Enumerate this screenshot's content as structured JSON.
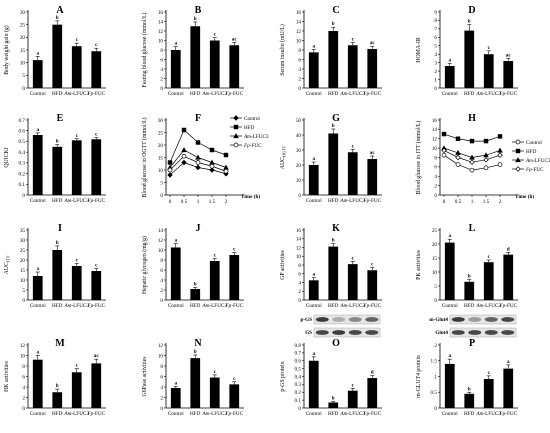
{
  "colors": {
    "bar": "#000000",
    "axis": "#000000",
    "blot_bg": "#ffffff",
    "blot_band": "#2b2b2b"
  },
  "charts": [
    {
      "panel": "A",
      "type": "bar",
      "ylabel": "Body weight gain (g)",
      "categories": [
        "Control",
        "HFD",
        "Am-LFUC3",
        "Fp-FUC"
      ],
      "values": [
        11,
        25,
        16.5,
        14.5
      ],
      "errors": [
        1.5,
        1.5,
        1.2,
        1.2
      ],
      "letters": [
        "a",
        "b",
        "c",
        "c"
      ],
      "yticks": [
        0,
        5,
        10,
        15,
        20,
        25,
        30
      ],
      "ylim": [
        0,
        30
      ]
    },
    {
      "panel": "B",
      "type": "bar",
      "ylabel": "Fasting blood glucose (mmol/L)",
      "categories": [
        "Control",
        "HFD",
        "Am-LFUC3",
        "Fp-FUC"
      ],
      "values": [
        8,
        13,
        10,
        9
      ],
      "errors": [
        0.7,
        0.9,
        0.6,
        0.6
      ],
      "letters": [
        "a",
        "b",
        "c",
        "ac"
      ],
      "yticks": [
        0,
        2,
        4,
        6,
        8,
        10,
        12,
        14,
        16
      ],
      "ylim": [
        0,
        16
      ]
    },
    {
      "panel": "C",
      "type": "bar",
      "ylabel": "Serum insulin (mU/L)",
      "categories": [
        "Control",
        "HFD",
        "Am-LFUC3",
        "Fp-FUC"
      ],
      "values": [
        7.5,
        12,
        9,
        8.2
      ],
      "errors": [
        0.6,
        0.8,
        0.6,
        0.6
      ],
      "letters": [
        "a",
        "b",
        "c",
        "ac"
      ],
      "yticks": [
        0,
        2,
        4,
        6,
        8,
        10,
        12,
        14,
        16
      ],
      "ylim": [
        0,
        16
      ]
    },
    {
      "panel": "D",
      "type": "bar",
      "ylabel": "HOMA-IR",
      "categories": [
        "Control",
        "HFD",
        "Am-LFUC3",
        "Fp-FUC"
      ],
      "values": [
        2.6,
        6.8,
        4,
        3.2
      ],
      "errors": [
        0.3,
        0.7,
        0.4,
        0.3
      ],
      "letters": [
        "a",
        "b",
        "c",
        "ac"
      ],
      "yticks": [
        0,
        1,
        2,
        3,
        4,
        5,
        6,
        7,
        8,
        9
      ],
      "ylim": [
        0,
        9
      ]
    },
    {
      "panel": "E",
      "type": "bar",
      "ylabel": "QUICKI",
      "categories": [
        "Control",
        "HFD",
        "Am-LFUC3",
        "Fp-FUC"
      ],
      "values": [
        0.56,
        0.45,
        0.51,
        0.52
      ],
      "errors": [
        0.02,
        0.02,
        0.015,
        0.015
      ],
      "letters": [
        "a",
        "b",
        "c",
        "c"
      ],
      "yticks": [
        0,
        0.1,
        0.2,
        0.3,
        0.4,
        0.5,
        0.6,
        0.7
      ],
      "ylim": [
        0,
        0.7
      ]
    },
    {
      "panel": "F",
      "type": "line",
      "ylabel": "Blood glucose in OGTT (mmol/L)",
      "xlabel": "Time (h)",
      "x": [
        0,
        0.5,
        1,
        1.5,
        2
      ],
      "xticks": [
        "0",
        "0.5",
        "1",
        "1.5",
        "2"
      ],
      "yticks": [
        0,
        5,
        10,
        15,
        20,
        25,
        30
      ],
      "ylim": [
        0,
        30
      ],
      "series": [
        {
          "name": "Control",
          "marker": "diamond-filled",
          "values": [
            8,
            13,
            11,
            10,
            8.5
          ]
        },
        {
          "name": "HFD",
          "marker": "square-filled",
          "values": [
            13,
            26,
            21,
            18,
            16
          ]
        },
        {
          "name": "Am-LFUC3",
          "marker": "triangle-filled",
          "values": [
            11,
            18,
            15,
            13,
            11
          ]
        },
        {
          "name": "Fp-FUC",
          "marker": "circle-open",
          "values": [
            10,
            15.5,
            13,
            11.5,
            9.5
          ]
        }
      ],
      "legend_position": "upper-right, outside plot"
    },
    {
      "panel": "G",
      "type": "bar",
      "ylabel": "AUC OGTT",
      "ylabel_main": "AUC",
      "ylabel_sub": "OGTT",
      "categories": [
        "Control",
        "HFD",
        "Am-LFUC3",
        "Fp-FUC"
      ],
      "values": [
        20,
        41,
        28.5,
        24
      ],
      "errors": [
        2,
        3,
        2,
        2
      ],
      "letters": [
        "a",
        "b",
        "c",
        "ac"
      ],
      "yticks": [
        0,
        10,
        20,
        30,
        40,
        50
      ],
      "ylim": [
        0,
        50
      ]
    },
    {
      "panel": "H",
      "type": "line",
      "ylabel": "Blood glucose in ITT (mmol/L)",
      "xlabel": "Time (h)",
      "x": [
        0,
        0.5,
        1,
        1.5,
        2
      ],
      "xticks": [
        "0",
        "0.5",
        "1",
        "1.5",
        "2"
      ],
      "yticks": [
        0,
        2,
        4,
        6,
        8,
        10,
        12,
        14,
        16
      ],
      "ylim": [
        0,
        16
      ],
      "series": [
        {
          "name": "Control",
          "marker": "circle-open",
          "values": [
            8.5,
            6.5,
            5.3,
            5.8,
            6.5
          ]
        },
        {
          "name": "HFD",
          "marker": "square-filled",
          "values": [
            13,
            12,
            11.5,
            11.5,
            12.5
          ]
        },
        {
          "name": "Am-LFUC3",
          "marker": "triangle-filled",
          "values": [
            10,
            9,
            8,
            8.5,
            9.5
          ]
        },
        {
          "name": "Fp-FUC",
          "marker": "diamond-open",
          "values": [
            9.5,
            8,
            7,
            7.5,
            8.5
          ]
        }
      ],
      "legend_position": "right-middle"
    },
    {
      "panel": "I",
      "type": "bar",
      "ylabel": "AUC ITT",
      "ylabel_main": "AUC",
      "ylabel_sub": "ITT",
      "categories": [
        "Control",
        "HFD",
        "Am-LFUC3",
        "Fp-FUC"
      ],
      "values": [
        12,
        25,
        17,
        14.5
      ],
      "errors": [
        2,
        2,
        1.2,
        1.2
      ],
      "letters": [
        "a",
        "b",
        "c",
        "c"
      ],
      "yticks": [
        0,
        5,
        10,
        15,
        20,
        25,
        30,
        35
      ],
      "ylim": [
        0,
        35
      ]
    },
    {
      "panel": "J",
      "type": "bar",
      "ylabel": "Hepatic glycogen (mg/g)",
      "categories": [
        "Control",
        "HFD",
        "Am-LFUC3",
        "Fp-FUC"
      ],
      "values": [
        10.5,
        2.2,
        7.8,
        9
      ],
      "errors": [
        0.8,
        0.3,
        0.5,
        0.5
      ],
      "letters": [
        "a",
        "b",
        "c",
        "c"
      ],
      "yticks": [
        0,
        2,
        4,
        6,
        8,
        10,
        12,
        14
      ],
      "ylim": [
        0,
        14
      ]
    },
    {
      "panel": "K",
      "type": "bar",
      "ylabel": "GP activities",
      "categories": [
        "Control",
        "HFD",
        "Am-LFUC3",
        "Fp-FUC"
      ],
      "values": [
        4.5,
        12.2,
        8.2,
        6.8
      ],
      "errors": [
        0.6,
        0.7,
        0.6,
        0.6
      ],
      "letters": [
        "a",
        "b",
        "c",
        "c"
      ],
      "yticks": [
        0,
        2,
        4,
        6,
        8,
        10,
        12,
        14,
        16
      ],
      "ylim": [
        0,
        16
      ]
    },
    {
      "panel": "L",
      "type": "bar",
      "ylabel": "PK activities",
      "categories": [
        "Control",
        "HFD",
        "Am-LFUC3",
        "Fp-FUC"
      ],
      "values": [
        20.5,
        6.5,
        13.5,
        16.2
      ],
      "errors": [
        1.2,
        0.8,
        0.8,
        0.8
      ],
      "letters": [
        "a",
        "b",
        "c",
        "d"
      ],
      "yticks": [
        0,
        5,
        10,
        15,
        20,
        25
      ],
      "ylim": [
        0,
        25
      ]
    },
    {
      "panel": "M",
      "type": "bar",
      "ylabel": "HK activities",
      "categories": [
        "Control",
        "HFD",
        "Am-LFUC3",
        "Fp-FUC"
      ],
      "values": [
        9.2,
        3,
        6.8,
        8.5
      ],
      "errors": [
        0.8,
        0.6,
        0.7,
        0.8
      ],
      "letters": [
        "a",
        "b",
        "c",
        "ac"
      ],
      "yticks": [
        0,
        2,
        4,
        6,
        8,
        10,
        12
      ],
      "ylim": [
        0,
        12
      ]
    },
    {
      "panel": "N",
      "type": "bar",
      "ylabel": "G6Pase activities",
      "categories": [
        "Control",
        "HFD",
        "Am-LFUC3",
        "Fp-FUC"
      ],
      "values": [
        3.8,
        9.5,
        5.8,
        4.5
      ],
      "errors": [
        0.3,
        0.6,
        0.5,
        0.5
      ],
      "letters": [
        "a",
        "b",
        "c",
        "c"
      ],
      "yticks": [
        0,
        2,
        4,
        6,
        8,
        10,
        12
      ],
      "ylim": [
        0,
        12
      ]
    },
    {
      "panel": "O",
      "type": "bar",
      "ylabel": "p-GS protein",
      "ylabel_main": "GS protein",
      "ylabel_prefix": "p-",
      "categories": [
        "Control",
        "HFD",
        "Am-LFUC3",
        "Fp-FUC"
      ],
      "values": [
        0.6,
        0.07,
        0.22,
        0.38
      ],
      "errors": [
        0.05,
        0.01,
        0.03,
        0.03
      ],
      "letters": [
        "a",
        "b",
        "c",
        "d"
      ],
      "yticks": [
        0,
        0.1,
        0.2,
        0.3,
        0.4,
        0.5,
        0.6,
        0.7,
        0.8
      ],
      "ylim": [
        0,
        0.8
      ],
      "blot_labels": [
        "p-GS",
        "GS"
      ],
      "blot_intensity": [
        [
          0.9,
          0.3,
          0.5,
          0.7
        ],
        [
          0.85,
          0.9,
          0.85,
          0.85
        ]
      ]
    },
    {
      "panel": "P",
      "type": "bar",
      "ylabel": "m-GLUT4 protein",
      "ylabel_main": "GLUT4 protein",
      "ylabel_prefix": "m-",
      "categories": [
        "Control",
        "HFD",
        "Am-LFUC3",
        "Fp-FUC"
      ],
      "values": [
        1.4,
        0.45,
        0.92,
        1.25
      ],
      "errors": [
        0.15,
        0.05,
        0.1,
        0.12
      ],
      "letters": [
        "a",
        "b",
        "c",
        "a"
      ],
      "yticks": [
        0,
        0.5,
        1,
        1.5,
        2
      ],
      "ylim": [
        0,
        2
      ],
      "blot_labels": [
        "m-Glut4",
        "Glut4"
      ],
      "blot_intensity": [
        [
          0.9,
          0.4,
          0.7,
          0.85
        ],
        [
          0.85,
          0.85,
          0.85,
          0.85
        ]
      ]
    }
  ]
}
